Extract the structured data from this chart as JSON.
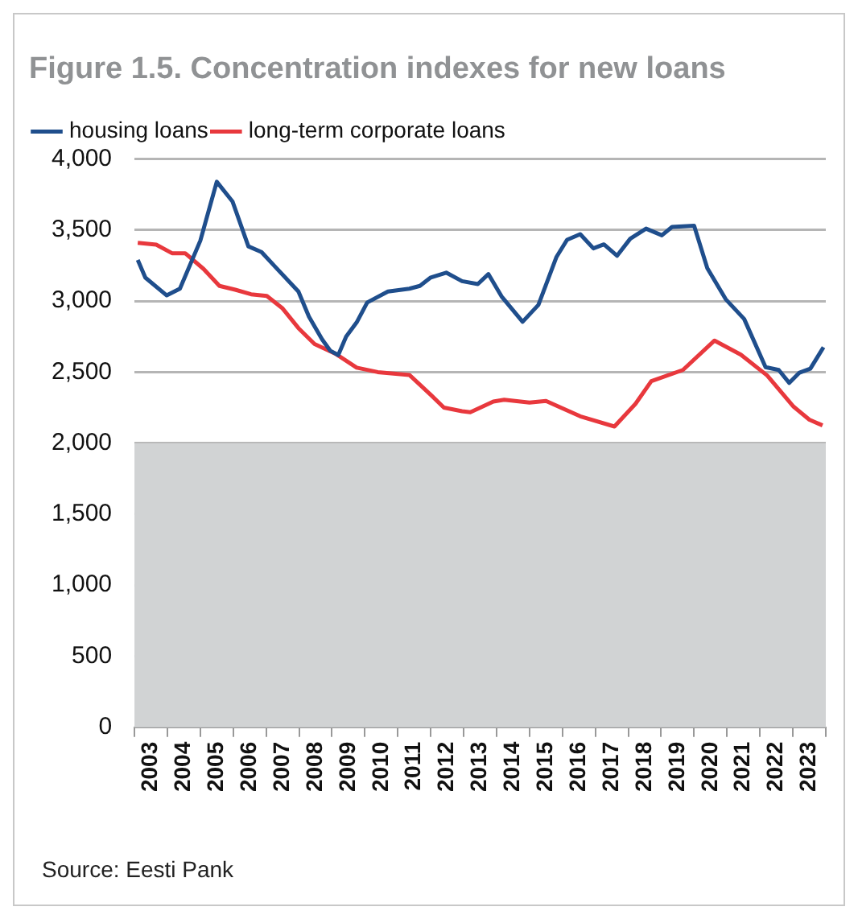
{
  "chart_data": {
    "type": "line",
    "title": "Figure 1.5. Concentration indexes for new loans",
    "series": [
      {
        "name": "housing loans",
        "color": "#1f4e8c",
        "x": [
          2003.1,
          2003.33,
          2003.98,
          2004.38,
          2005.0,
          2005.5,
          2005.98,
          2006.46,
          2006.86,
          2007.26,
          2007.98,
          2008.3,
          2008.7,
          2008.95,
          2009.19,
          2009.43,
          2009.75,
          2010.07,
          2010.7,
          2011.35,
          2011.67,
          2012.0,
          2012.47,
          2012.95,
          2013.43,
          2013.75,
          2014.15,
          2014.79,
          2015.27,
          2015.82,
          2016.14,
          2016.54,
          2016.94,
          2017.26,
          2017.66,
          2018.06,
          2018.54,
          2019.02,
          2019.33,
          2020.0,
          2020.4,
          2020.96,
          2021.52,
          2022.17,
          2022.57,
          2022.89,
          2023.2,
          2023.53,
          2023.93
        ],
        "values": [
          3290,
          3165,
          3040,
          3087,
          3425,
          3840,
          3700,
          3385,
          3345,
          3245,
          3067,
          2890,
          2730,
          2650,
          2620,
          2750,
          2850,
          2990,
          3067,
          3087,
          3107,
          3166,
          3200,
          3140,
          3120,
          3190,
          3033,
          2854,
          2973,
          3311,
          3431,
          3471,
          3371,
          3399,
          3319,
          3439,
          3510,
          3463,
          3522,
          3530,
          3232,
          3013,
          2874,
          2535,
          2515,
          2424,
          2496,
          2524,
          2675
        ]
      },
      {
        "name": "long-term corporate loans",
        "color": "#e8383d",
        "x": [
          2003.1,
          2003.66,
          2004.14,
          2004.54,
          2005.1,
          2005.58,
          2006.06,
          2006.54,
          2007.02,
          2007.5,
          2007.98,
          2008.47,
          2009.1,
          2009.75,
          2010.39,
          2011.35,
          2012.0,
          2012.4,
          2012.95,
          2013.2,
          2013.9,
          2014.23,
          2015.0,
          2015.5,
          2016.54,
          2017.58,
          2018.22,
          2018.7,
          2019.66,
          2020.62,
          2021.42,
          2022.22,
          2023.02,
          2023.5,
          2023.9
        ],
        "values": [
          3410,
          3397,
          3337,
          3337,
          3226,
          3107,
          3080,
          3048,
          3036,
          2948,
          2810,
          2698,
          2630,
          2531,
          2500,
          2480,
          2340,
          2250,
          2225,
          2217,
          2293,
          2305,
          2285,
          2297,
          2189,
          2117,
          2277,
          2436,
          2515,
          2722,
          2623,
          2476,
          2257,
          2165,
          2125
        ]
      }
    ],
    "xlim": [
      2003,
      2024
    ],
    "xticks": [
      {
        "value": 2003,
        "label": null
      },
      {
        "value": 2003.5,
        "label": "2003"
      },
      {
        "value": 2004,
        "label": null
      },
      {
        "value": 2004.5,
        "label": "2004"
      },
      {
        "value": 2005,
        "label": null
      },
      {
        "value": 2005.5,
        "label": "2005"
      },
      {
        "value": 2006,
        "label": null
      },
      {
        "value": 2006.5,
        "label": "2006"
      },
      {
        "value": 2007,
        "label": null
      },
      {
        "value": 2007.5,
        "label": "2007"
      },
      {
        "value": 2008,
        "label": null
      },
      {
        "value": 2008.5,
        "label": "2008"
      },
      {
        "value": 2009,
        "label": null
      },
      {
        "value": 2009.5,
        "label": "2009"
      },
      {
        "value": 2010,
        "label": null
      },
      {
        "value": 2010.5,
        "label": "2010"
      },
      {
        "value": 2011,
        "label": null
      },
      {
        "value": 2011.5,
        "label": "2011"
      },
      {
        "value": 2012,
        "label": null
      },
      {
        "value": 2012.5,
        "label": "2012"
      },
      {
        "value": 2013,
        "label": null
      },
      {
        "value": 2013.5,
        "label": "2013"
      },
      {
        "value": 2014,
        "label": null
      },
      {
        "value": 2014.5,
        "label": "2014"
      },
      {
        "value": 2015,
        "label": null
      },
      {
        "value": 2015.5,
        "label": "2015"
      },
      {
        "value": 2016,
        "label": null
      },
      {
        "value": 2016.5,
        "label": "2016"
      },
      {
        "value": 2017,
        "label": null
      },
      {
        "value": 2017.5,
        "label": "2017"
      },
      {
        "value": 2018,
        "label": null
      },
      {
        "value": 2018.5,
        "label": "2018"
      },
      {
        "value": 2019,
        "label": null
      },
      {
        "value": 2019.5,
        "label": "2019"
      },
      {
        "value": 2020,
        "label": null
      },
      {
        "value": 2020.5,
        "label": "2020"
      },
      {
        "value": 2021,
        "label": null
      },
      {
        "value": 2021.5,
        "label": "2021"
      },
      {
        "value": 2022,
        "label": null
      },
      {
        "value": 2022.5,
        "label": "2022"
      },
      {
        "value": 2023,
        "label": null
      },
      {
        "value": 2023.5,
        "label": "2023"
      },
      {
        "value": 2024,
        "label": null
      }
    ],
    "ylim": [
      0,
      4000
    ],
    "yticks": [
      0,
      500,
      {
        "value": 1000,
        "label": "1,000"
      },
      {
        "value": 1500,
        "label": "1,500"
      },
      {
        "value": 2000,
        "label": "2,000"
      },
      {
        "value": 2500,
        "label": "2,500"
      },
      {
        "value": 3000,
        "label": "3,000"
      },
      {
        "value": 3500,
        "label": "3,500"
      },
      {
        "value": 4000,
        "label": "4,000"
      }
    ],
    "bands": [
      {
        "axis": "y",
        "from": 0,
        "to": 2000,
        "color": "#d1d3d4"
      }
    ],
    "grid": "y",
    "legend": "top left",
    "marker": "none",
    "line_style": "solid",
    "annotations": [
      "Source: Eesti Pank"
    ]
  }
}
